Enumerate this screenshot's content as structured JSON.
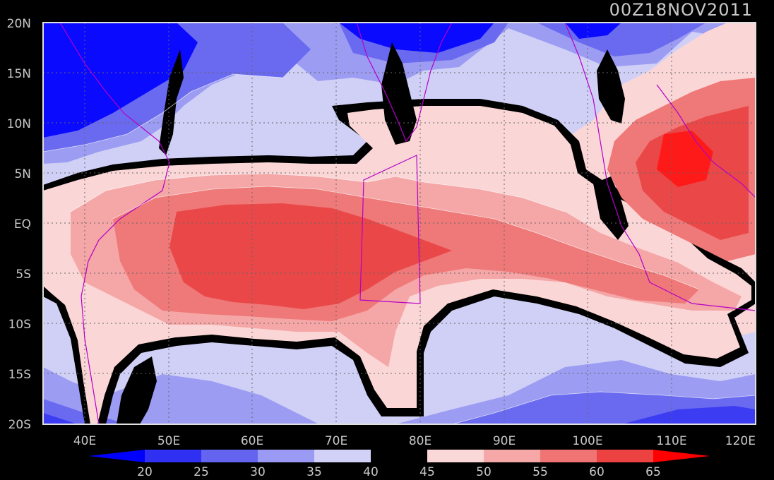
{
  "title": "00Z18NOV2011",
  "axes": {
    "lat_labels": [
      "20N",
      "15N",
      "10N",
      "5N",
      "EQ",
      "5S",
      "10S",
      "15S",
      "20S"
    ],
    "lon_labels": [
      "40E",
      "50E",
      "60E",
      "70E",
      "80E",
      "90E",
      "100E",
      "110E",
      "120E"
    ],
    "lat_range": [
      -20,
      20
    ],
    "lon_range": [
      35,
      120
    ],
    "grid": "dotted"
  },
  "colorbar": {
    "ticks": [
      "20",
      "25",
      "30",
      "35",
      "40",
      "45",
      "50",
      "55",
      "60",
      "65"
    ],
    "colors": [
      "#0000ff",
      "#3030f2",
      "#6464f0",
      "#9a9af4",
      "#d2d2f8",
      "#000000",
      "#fbd8d8",
      "#f6a8a8",
      "#f07474",
      "#ec4242",
      "#ff0000"
    ]
  },
  "palette": {
    "level_20": "#0a0aff",
    "level_25": "#3c3cf2",
    "level_30": "#6a6af0",
    "level_35": "#9c9cf3",
    "level_40": "#d0d0f7",
    "level_40_45": "#000000",
    "level_45": "#fbd6d6",
    "level_50": "#f5a6a6",
    "level_55": "#ef7878",
    "level_60": "#ea4848",
    "level_65": "#ff1a1a",
    "coastline": "#b400c8",
    "contour_line": "#ffffff"
  }
}
